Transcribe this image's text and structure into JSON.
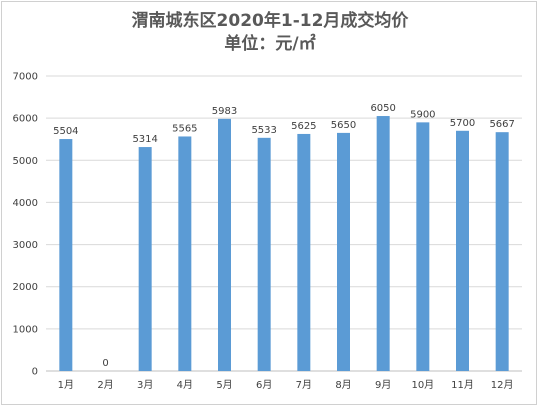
{
  "chart_data": {
    "type": "bar",
    "title": "渭南城东区2020年1-12月成交均价",
    "subtitle": "单位：元/㎡",
    "categories": [
      "1月",
      "2月",
      "3月",
      "4月",
      "5月",
      "6月",
      "7月",
      "8月",
      "9月",
      "10月",
      "11月",
      "12月"
    ],
    "values": [
      5504,
      0,
      5314,
      5565,
      5983,
      5533,
      5625,
      5650,
      6050,
      5900,
      5700,
      5667
    ],
    "y_ticks": [
      "0",
      "1000",
      "2000",
      "3000",
      "4000",
      "5000",
      "6000",
      "7000"
    ],
    "ylim": [
      0,
      7000
    ],
    "xlabel": "",
    "ylabel": "",
    "grid": true,
    "data_labels": true,
    "bar_color": "#5b9bd5"
  }
}
